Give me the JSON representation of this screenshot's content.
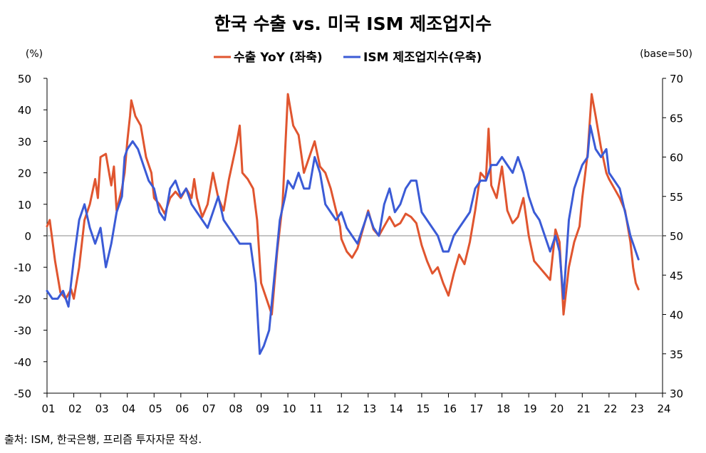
{
  "title": "한국 수출 vs. 미국 ISM 제조업지수",
  "source": "출처: ISM, 한국은행, 프리즘 투자자문 작성.",
  "chart_data": {
    "type": "line",
    "title": "한국 수출 vs. 미국 ISM 제조업지수",
    "left_axis_unit": "(%)",
    "right_axis_unit": "(base=50)",
    "xlabel": "",
    "x_ticks": [
      "01",
      "02",
      "03",
      "04",
      "05",
      "06",
      "07",
      "08",
      "09",
      "10",
      "11",
      "12",
      "13",
      "14",
      "15",
      "16",
      "17",
      "18",
      "19",
      "20",
      "21",
      "22",
      "23",
      "24"
    ],
    "xlim": [
      2001,
      2024
    ],
    "left_ylim": [
      -50,
      50
    ],
    "left_yticks": [
      -50,
      -40,
      -30,
      -20,
      -10,
      0,
      10,
      20,
      30,
      40,
      50
    ],
    "right_ylim": [
      30,
      70
    ],
    "right_yticks": [
      30,
      35,
      40,
      45,
      50,
      55,
      60,
      65,
      70
    ],
    "colors": {
      "export": "#E0552F",
      "ism": "#3B5BD6",
      "axis": "#000000",
      "refline": "#888888"
    },
    "series": [
      {
        "name": "수출 YoY (좌축)",
        "axis": "left",
        "points": [
          [
            2001.0,
            3
          ],
          [
            2001.1,
            5
          ],
          [
            2001.3,
            -8
          ],
          [
            2001.5,
            -18
          ],
          [
            2001.7,
            -20
          ],
          [
            2001.9,
            -17
          ],
          [
            2002.0,
            -20
          ],
          [
            2002.2,
            -10
          ],
          [
            2002.4,
            5
          ],
          [
            2002.6,
            10
          ],
          [
            2002.8,
            18
          ],
          [
            2002.9,
            12
          ],
          [
            2003.0,
            25
          ],
          [
            2003.2,
            26
          ],
          [
            2003.4,
            16
          ],
          [
            2003.5,
            22
          ],
          [
            2003.6,
            8
          ],
          [
            2003.8,
            15
          ],
          [
            2003.9,
            20
          ],
          [
            2004.0,
            30
          ],
          [
            2004.1,
            38
          ],
          [
            2004.15,
            43
          ],
          [
            2004.3,
            38
          ],
          [
            2004.5,
            35
          ],
          [
            2004.7,
            25
          ],
          [
            2004.9,
            20
          ],
          [
            2005.0,
            12
          ],
          [
            2005.2,
            10
          ],
          [
            2005.4,
            7
          ],
          [
            2005.6,
            12
          ],
          [
            2005.8,
            14
          ],
          [
            2006.0,
            12
          ],
          [
            2006.2,
            15
          ],
          [
            2006.4,
            12
          ],
          [
            2006.5,
            18
          ],
          [
            2006.6,
            12
          ],
          [
            2006.8,
            6
          ],
          [
            2007.0,
            10
          ],
          [
            2007.2,
            20
          ],
          [
            2007.4,
            12
          ],
          [
            2007.6,
            8
          ],
          [
            2007.8,
            18
          ],
          [
            2008.0,
            26
          ],
          [
            2008.1,
            30
          ],
          [
            2008.2,
            35
          ],
          [
            2008.3,
            20
          ],
          [
            2008.5,
            18
          ],
          [
            2008.7,
            15
          ],
          [
            2008.85,
            5
          ],
          [
            2009.0,
            -15
          ],
          [
            2009.2,
            -20
          ],
          [
            2009.4,
            -25
          ],
          [
            2009.6,
            -5
          ],
          [
            2009.8,
            10
          ],
          [
            2010.0,
            45
          ],
          [
            2010.2,
            35
          ],
          [
            2010.4,
            32
          ],
          [
            2010.6,
            20
          ],
          [
            2010.8,
            25
          ],
          [
            2011.0,
            30
          ],
          [
            2011.2,
            22
          ],
          [
            2011.4,
            20
          ],
          [
            2011.6,
            15
          ],
          [
            2011.8,
            8
          ],
          [
            2011.95,
            3
          ],
          [
            2012.0,
            -1
          ],
          [
            2012.2,
            -5
          ],
          [
            2012.4,
            -7
          ],
          [
            2012.6,
            -4
          ],
          [
            2012.8,
            2
          ],
          [
            2013.0,
            8
          ],
          [
            2013.2,
            2
          ],
          [
            2013.4,
            0
          ],
          [
            2013.6,
            3
          ],
          [
            2013.8,
            6
          ],
          [
            2014.0,
            3
          ],
          [
            2014.2,
            4
          ],
          [
            2014.4,
            7
          ],
          [
            2014.6,
            6
          ],
          [
            2014.8,
            4
          ],
          [
            2015.0,
            -3
          ],
          [
            2015.2,
            -8
          ],
          [
            2015.4,
            -12
          ],
          [
            2015.6,
            -10
          ],
          [
            2015.8,
            -15
          ],
          [
            2016.0,
            -19
          ],
          [
            2016.2,
            -12
          ],
          [
            2016.4,
            -6
          ],
          [
            2016.6,
            -9
          ],
          [
            2016.8,
            -2
          ],
          [
            2017.0,
            8
          ],
          [
            2017.2,
            20
          ],
          [
            2017.4,
            18
          ],
          [
            2017.5,
            34
          ],
          [
            2017.6,
            16
          ],
          [
            2017.8,
            12
          ],
          [
            2018.0,
            22
          ],
          [
            2018.2,
            8
          ],
          [
            2018.4,
            4
          ],
          [
            2018.6,
            6
          ],
          [
            2018.8,
            12
          ],
          [
            2019.0,
            0
          ],
          [
            2019.2,
            -8
          ],
          [
            2019.4,
            -10
          ],
          [
            2019.6,
            -12
          ],
          [
            2019.8,
            -14
          ],
          [
            2020.0,
            2
          ],
          [
            2020.15,
            -2
          ],
          [
            2020.3,
            -25
          ],
          [
            2020.5,
            -10
          ],
          [
            2020.7,
            -2
          ],
          [
            2020.9,
            3
          ],
          [
            2021.0,
            12
          ],
          [
            2021.2,
            26
          ],
          [
            2021.35,
            45
          ],
          [
            2021.5,
            38
          ],
          [
            2021.7,
            28
          ],
          [
            2021.9,
            20
          ],
          [
            2022.0,
            18
          ],
          [
            2022.2,
            15
          ],
          [
            2022.4,
            12
          ],
          [
            2022.6,
            8
          ],
          [
            2022.8,
            -2
          ],
          [
            2022.9,
            -10
          ],
          [
            2023.0,
            -15
          ],
          [
            2023.1,
            -17
          ]
        ]
      },
      {
        "name": "ISM 제조업지수(우축)",
        "axis": "right",
        "points": [
          [
            2001.0,
            43
          ],
          [
            2001.2,
            42
          ],
          [
            2001.4,
            42
          ],
          [
            2001.6,
            43
          ],
          [
            2001.8,
            41
          ],
          [
            2001.9,
            44
          ],
          [
            2002.0,
            47
          ],
          [
            2002.2,
            52
          ],
          [
            2002.4,
            54
          ],
          [
            2002.6,
            51
          ],
          [
            2002.8,
            49
          ],
          [
            2002.9,
            50
          ],
          [
            2003.0,
            51
          ],
          [
            2003.2,
            46
          ],
          [
            2003.4,
            49
          ],
          [
            2003.6,
            53
          ],
          [
            2003.8,
            55
          ],
          [
            2003.9,
            60
          ],
          [
            2004.0,
            61
          ],
          [
            2004.2,
            62
          ],
          [
            2004.4,
            61
          ],
          [
            2004.6,
            59
          ],
          [
            2004.8,
            57
          ],
          [
            2005.0,
            56
          ],
          [
            2005.2,
            53
          ],
          [
            2005.4,
            52
          ],
          [
            2005.6,
            56
          ],
          [
            2005.8,
            57
          ],
          [
            2006.0,
            55
          ],
          [
            2006.2,
            56
          ],
          [
            2006.4,
            54
          ],
          [
            2006.6,
            53
          ],
          [
            2006.8,
            52
          ],
          [
            2007.0,
            51
          ],
          [
            2007.2,
            53
          ],
          [
            2007.4,
            55
          ],
          [
            2007.6,
            52
          ],
          [
            2007.8,
            51
          ],
          [
            2008.0,
            50
          ],
          [
            2008.2,
            49
          ],
          [
            2008.4,
            49
          ],
          [
            2008.6,
            49
          ],
          [
            2008.8,
            44
          ],
          [
            2008.95,
            35
          ],
          [
            2009.1,
            36
          ],
          [
            2009.3,
            38
          ],
          [
            2009.5,
            45
          ],
          [
            2009.7,
            52
          ],
          [
            2009.9,
            55
          ],
          [
            2010.0,
            57
          ],
          [
            2010.2,
            56
          ],
          [
            2010.4,
            58
          ],
          [
            2010.6,
            56
          ],
          [
            2010.8,
            56
          ],
          [
            2011.0,
            60
          ],
          [
            2011.2,
            58
          ],
          [
            2011.4,
            54
          ],
          [
            2011.6,
            53
          ],
          [
            2011.8,
            52
          ],
          [
            2012.0,
            53
          ],
          [
            2012.2,
            51
          ],
          [
            2012.4,
            50
          ],
          [
            2012.6,
            49
          ],
          [
            2012.8,
            51
          ],
          [
            2013.0,
            53
          ],
          [
            2013.2,
            51
          ],
          [
            2013.4,
            50
          ],
          [
            2013.6,
            54
          ],
          [
            2013.8,
            56
          ],
          [
            2014.0,
            53
          ],
          [
            2014.2,
            54
          ],
          [
            2014.4,
            56
          ],
          [
            2014.6,
            57
          ],
          [
            2014.8,
            57
          ],
          [
            2015.0,
            53
          ],
          [
            2015.2,
            52
          ],
          [
            2015.4,
            51
          ],
          [
            2015.6,
            50
          ],
          [
            2015.8,
            48
          ],
          [
            2016.0,
            48
          ],
          [
            2016.2,
            50
          ],
          [
            2016.4,
            51
          ],
          [
            2016.6,
            52
          ],
          [
            2016.8,
            53
          ],
          [
            2017.0,
            56
          ],
          [
            2017.2,
            57
          ],
          [
            2017.4,
            57
          ],
          [
            2017.6,
            59
          ],
          [
            2017.8,
            59
          ],
          [
            2018.0,
            60
          ],
          [
            2018.2,
            59
          ],
          [
            2018.4,
            58
          ],
          [
            2018.6,
            60
          ],
          [
            2018.8,
            58
          ],
          [
            2019.0,
            55
          ],
          [
            2019.2,
            53
          ],
          [
            2019.4,
            52
          ],
          [
            2019.6,
            50
          ],
          [
            2019.8,
            48
          ],
          [
            2020.0,
            50
          ],
          [
            2020.15,
            48
          ],
          [
            2020.3,
            42
          ],
          [
            2020.5,
            52
          ],
          [
            2020.7,
            56
          ],
          [
            2020.9,
            58
          ],
          [
            2021.0,
            59
          ],
          [
            2021.2,
            60
          ],
          [
            2021.3,
            64
          ],
          [
            2021.5,
            61
          ],
          [
            2021.7,
            60
          ],
          [
            2021.9,
            61
          ],
          [
            2022.0,
            58
          ],
          [
            2022.2,
            57
          ],
          [
            2022.4,
            56
          ],
          [
            2022.6,
            53
          ],
          [
            2022.8,
            50
          ],
          [
            2022.9,
            49
          ],
          [
            2023.0,
            48
          ],
          [
            2023.1,
            47
          ]
        ]
      }
    ]
  }
}
